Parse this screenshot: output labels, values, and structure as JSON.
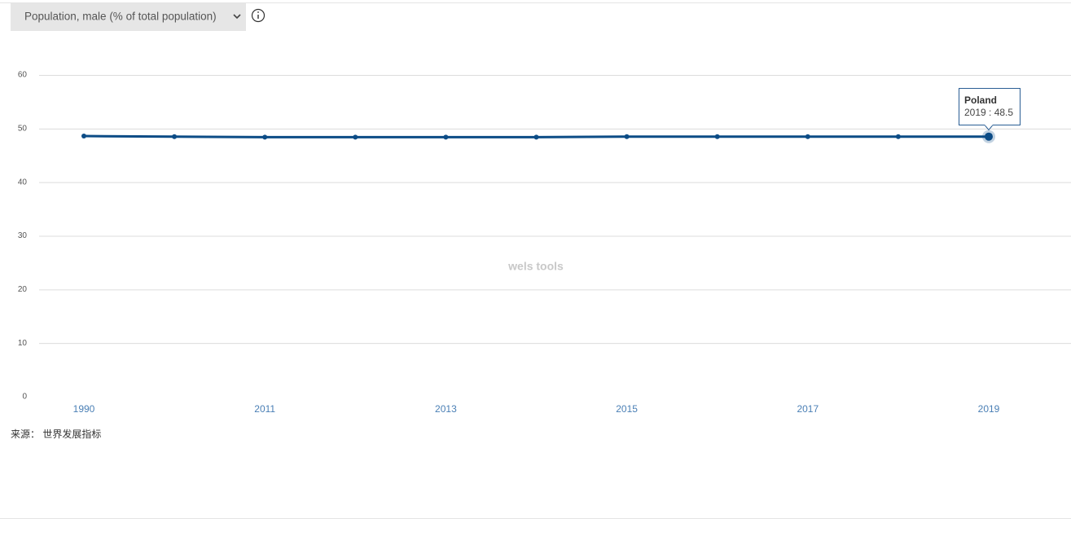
{
  "indicator_select": "Population, male (% of total population)",
  "source": "来源： 世界发展指标",
  "watermark": "wels tools",
  "tooltip": {
    "title": "Poland",
    "text": "2019 : 48.5"
  },
  "chart_data": {
    "type": "line",
    "categories": [
      "1990",
      null,
      "2011",
      null,
      "2013",
      null,
      "2015",
      null,
      "2017",
      null,
      "2019"
    ],
    "series": [
      {
        "name": "Poland",
        "color": "#0c4c86",
        "values": [
          48.6,
          48.5,
          48.4,
          48.4,
          48.4,
          48.4,
          48.5,
          48.5,
          48.5,
          48.5,
          48.5
        ]
      }
    ],
    "ylim": [
      0,
      60
    ],
    "yticks": [
      0,
      10,
      20,
      30,
      40,
      50,
      60
    ],
    "grid": true
  }
}
